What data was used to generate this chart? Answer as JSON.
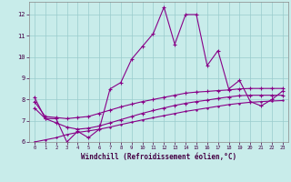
{
  "xlabel": "Windchill (Refroidissement éolien,°C)",
  "bg_color": "#c8ecea",
  "line_color": "#880088",
  "grid_color": "#99cccc",
  "xlim": [
    -0.5,
    23.5
  ],
  "ylim": [
    6.0,
    12.6
  ],
  "xticks": [
    0,
    1,
    2,
    3,
    4,
    5,
    6,
    7,
    8,
    9,
    10,
    11,
    12,
    13,
    14,
    15,
    16,
    17,
    18,
    19,
    20,
    21,
    22,
    23
  ],
  "yticks": [
    6,
    7,
    8,
    9,
    10,
    11,
    12
  ],
  "series1_x": [
    0,
    1,
    2,
    3,
    4,
    5,
    6,
    7,
    8,
    9,
    10,
    11,
    12,
    13,
    14,
    15,
    16,
    17,
    18,
    19,
    20,
    21,
    22,
    23
  ],
  "series1_y": [
    8.1,
    7.1,
    7.1,
    6.0,
    6.5,
    6.2,
    6.6,
    8.5,
    8.8,
    9.9,
    10.5,
    11.1,
    12.35,
    10.6,
    12.0,
    12.0,
    9.6,
    10.3,
    8.5,
    8.9,
    7.9,
    7.7,
    8.0,
    8.4
  ],
  "series2_x": [
    0,
    1,
    2,
    3,
    4,
    5,
    6,
    7,
    8,
    9,
    10,
    11,
    12,
    13,
    14,
    15,
    16,
    17,
    18,
    19,
    20,
    21,
    22,
    23
  ],
  "series2_y": [
    7.9,
    7.2,
    7.15,
    7.1,
    7.15,
    7.2,
    7.35,
    7.5,
    7.65,
    7.78,
    7.9,
    8.0,
    8.1,
    8.2,
    8.3,
    8.35,
    8.38,
    8.42,
    8.45,
    8.5,
    8.52,
    8.52,
    8.52,
    8.52
  ],
  "series3_x": [
    0,
    1,
    2,
    3,
    4,
    5,
    6,
    7,
    8,
    9,
    10,
    11,
    12,
    13,
    14,
    15,
    16,
    17,
    18,
    19,
    20,
    21,
    22,
    23
  ],
  "series3_y": [
    7.6,
    7.1,
    6.9,
    6.7,
    6.6,
    6.65,
    6.75,
    6.9,
    7.05,
    7.2,
    7.35,
    7.48,
    7.6,
    7.72,
    7.82,
    7.9,
    7.97,
    8.05,
    8.12,
    8.18,
    8.2,
    8.2,
    8.2,
    8.2
  ],
  "series4_x": [
    0,
    1,
    2,
    3,
    4,
    5,
    6,
    7,
    8,
    9,
    10,
    11,
    12,
    13,
    14,
    15,
    16,
    17,
    18,
    19,
    20,
    21,
    22,
    23
  ],
  "series4_y": [
    6.0,
    6.1,
    6.2,
    6.35,
    6.45,
    6.52,
    6.6,
    6.7,
    6.82,
    6.93,
    7.04,
    7.14,
    7.24,
    7.34,
    7.44,
    7.52,
    7.6,
    7.68,
    7.76,
    7.82,
    7.87,
    7.9,
    7.93,
    7.95
  ]
}
